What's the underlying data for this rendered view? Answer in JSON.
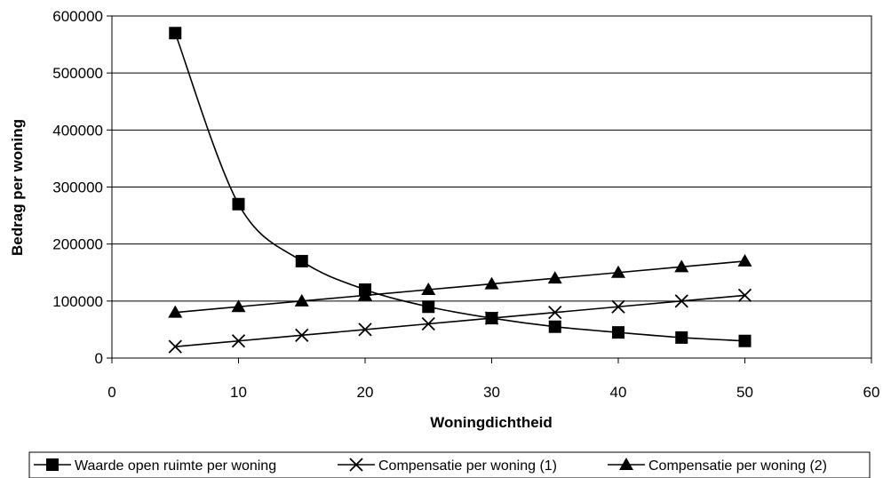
{
  "chart_data": {
    "type": "line",
    "title": "",
    "xlabel": "Woningdichtheid",
    "ylabel": "Bedrag per woning",
    "xlim": [
      0,
      60
    ],
    "ylim": [
      0,
      600000
    ],
    "x_ticks": [
      0,
      10,
      20,
      30,
      40,
      50,
      60
    ],
    "y_ticks": [
      0,
      100000,
      200000,
      300000,
      400000,
      500000,
      600000
    ],
    "grid": "horizontal major gridlines",
    "legend_position": "bottom",
    "x": [
      5,
      10,
      15,
      20,
      25,
      30,
      35,
      40,
      45,
      50
    ],
    "series": [
      {
        "name": "Waarde open ruimte per woning",
        "marker": "square",
        "smooth": true,
        "color": "#000000",
        "values": [
          570000,
          270000,
          170000,
          120000,
          90000,
          70000,
          55000,
          45000,
          36000,
          30000
        ]
      },
      {
        "name": "Compensatie per woning (1)",
        "marker": "x",
        "smooth": false,
        "color": "#000000",
        "values": [
          20000,
          30000,
          40000,
          50000,
          60000,
          70000,
          80000,
          90000,
          100000,
          110000
        ]
      },
      {
        "name": "Compensatie per woning (2)",
        "marker": "triangle",
        "smooth": false,
        "color": "#000000",
        "values": [
          80000,
          90000,
          100000,
          110000,
          120000,
          130000,
          140000,
          150000,
          160000,
          170000
        ]
      }
    ]
  }
}
